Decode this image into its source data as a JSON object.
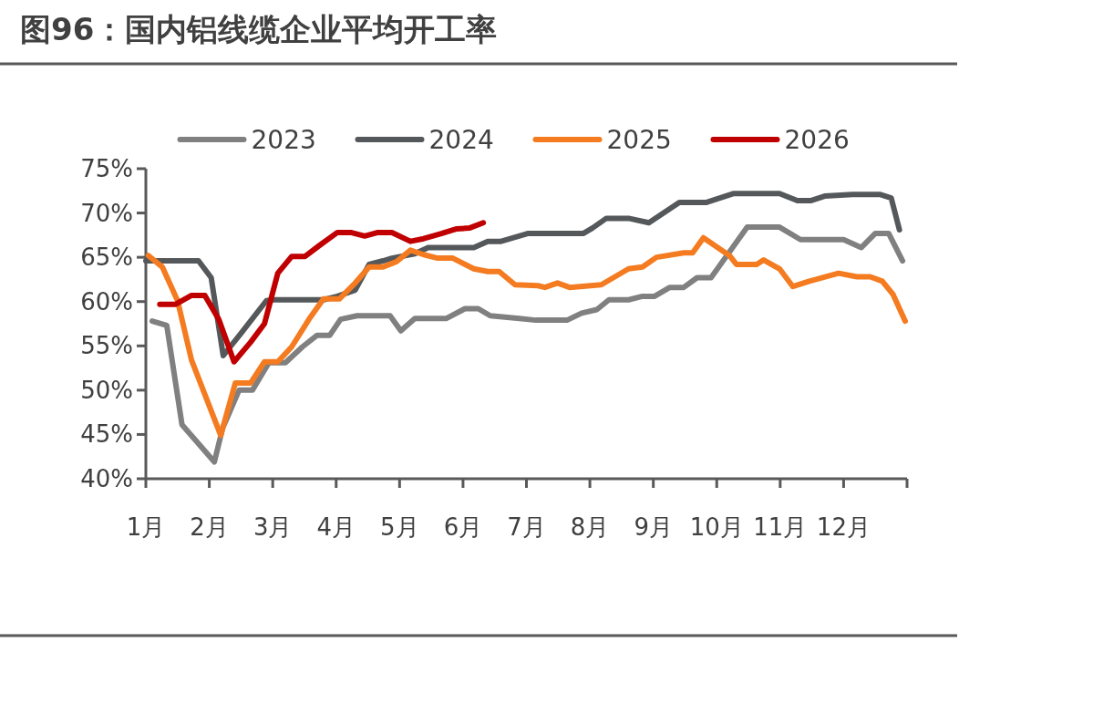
{
  "chart_data": {
    "type": "line",
    "title": "图96：国内铝线缆企业平均开工率",
    "legend": "top",
    "xlim": [
      1,
      13
    ],
    "ylim": [
      40,
      75
    ],
    "xticks": [
      {
        "value": 1,
        "label": "1月"
      },
      {
        "value": 2,
        "label": "2月"
      },
      {
        "value": 3,
        "label": "3月"
      },
      {
        "value": 4,
        "label": "4月"
      },
      {
        "value": 5,
        "label": "5月"
      },
      {
        "value": 6,
        "label": "6月"
      },
      {
        "value": 7,
        "label": "7月"
      },
      {
        "value": 8,
        "label": "8月"
      },
      {
        "value": 9,
        "label": "9月"
      },
      {
        "value": 10,
        "label": "10月"
      },
      {
        "value": 11,
        "label": "11月"
      },
      {
        "value": 12,
        "label": "12月"
      },
      {
        "value": 13,
        "label": null
      }
    ],
    "yticks": [
      {
        "value": 40,
        "label": "40%"
      },
      {
        "value": 45,
        "label": "45%"
      },
      {
        "value": 50,
        "label": "50%"
      },
      {
        "value": 55,
        "label": "55%"
      },
      {
        "value": 60,
        "label": "60%"
      },
      {
        "value": 65,
        "label": "65%"
      },
      {
        "value": 70,
        "label": "70%"
      },
      {
        "value": 75,
        "label": "75%"
      }
    ],
    "series": [
      {
        "name": "2023",
        "color": "#808080",
        "x": [
          1.1,
          1.33,
          1.57,
          2.08,
          2.21,
          2.47,
          2.68,
          2.94,
          3.2,
          3.47,
          3.7,
          3.9,
          4.07,
          4.33,
          4.85,
          5.02,
          5.24,
          5.74,
          6.03,
          6.24,
          6.43,
          6.89,
          7.15,
          7.64,
          7.87,
          8.11,
          8.3,
          8.61,
          8.83,
          9.02,
          9.26,
          9.48,
          9.69,
          9.91,
          10.48,
          10.99,
          11.32,
          12.0,
          12.28,
          12.5,
          12.71,
          12.93
        ],
        "values": [
          57.8,
          57.3,
          46.1,
          41.9,
          45.7,
          50.0,
          50.0,
          53.1,
          53.1,
          54.9,
          56.2,
          56.2,
          58.0,
          58.4,
          58.4,
          56.7,
          58.1,
          58.1,
          59.2,
          59.2,
          58.4,
          58.1,
          57.9,
          57.9,
          58.7,
          59.1,
          60.2,
          60.2,
          60.6,
          60.6,
          61.6,
          61.6,
          62.7,
          62.7,
          68.4,
          68.4,
          67.0,
          67.0,
          66.1,
          67.7,
          67.7,
          64.6
        ]
      },
      {
        "name": "2024",
        "color": "#54585a",
        "x": [
          1.0,
          1.83,
          2.03,
          2.22,
          2.51,
          2.9,
          3.01,
          3.8,
          4.02,
          4.3,
          4.52,
          4.74,
          4.88,
          5.24,
          5.45,
          6.17,
          6.39,
          6.6,
          7.03,
          7.9,
          8.04,
          8.26,
          8.61,
          8.93,
          9.41,
          9.84,
          10.27,
          10.99,
          11.27,
          11.49,
          11.7,
          12.14,
          12.57,
          12.75,
          12.88
        ],
        "values": [
          64.6,
          64.6,
          62.7,
          53.9,
          56.5,
          60.1,
          60.2,
          60.2,
          60.6,
          61.3,
          64.2,
          64.6,
          64.9,
          65.4,
          66.1,
          66.1,
          66.8,
          66.8,
          67.7,
          67.7,
          68.3,
          69.4,
          69.4,
          68.9,
          71.2,
          71.2,
          72.2,
          72.2,
          71.4,
          71.4,
          71.9,
          72.1,
          72.1,
          71.7,
          68.1
        ]
      },
      {
        "name": "2025",
        "color": "#f47b20",
        "x": [
          1.04,
          1.26,
          1.5,
          1.72,
          2.18,
          2.41,
          2.65,
          2.87,
          3.08,
          3.3,
          3.59,
          3.8,
          4.05,
          4.3,
          4.52,
          4.74,
          4.95,
          5.17,
          5.38,
          5.6,
          5.84,
          6.17,
          6.39,
          6.57,
          6.82,
          7.18,
          7.29,
          7.49,
          7.68,
          8.18,
          8.61,
          8.83,
          9.05,
          9.48,
          9.62,
          9.79,
          10.2,
          10.31,
          10.63,
          10.74,
          10.99,
          11.2,
          11.46,
          11.92,
          12.21,
          12.42,
          12.61,
          12.78,
          12.97
        ],
        "values": [
          65.2,
          63.9,
          60.1,
          53.4,
          44.9,
          50.8,
          50.8,
          53.2,
          53.2,
          54.9,
          58.2,
          60.3,
          60.3,
          62.1,
          63.9,
          63.9,
          64.5,
          65.8,
          65.3,
          64.9,
          64.9,
          63.7,
          63.4,
          63.4,
          61.9,
          61.8,
          61.6,
          62.1,
          61.6,
          61.9,
          63.7,
          63.9,
          65.0,
          65.5,
          65.5,
          67.2,
          65.2,
          64.2,
          64.2,
          64.7,
          63.7,
          61.7,
          62.3,
          63.2,
          62.8,
          62.8,
          62.3,
          60.8,
          57.8
        ]
      },
      {
        "name": "2026",
        "color": "#c00000",
        "x": [
          1.22,
          1.47,
          1.72,
          1.93,
          2.15,
          2.39,
          2.65,
          2.87,
          3.08,
          3.3,
          3.51,
          3.73,
          4.02,
          4.23,
          4.45,
          4.66,
          4.88,
          5.17,
          5.38,
          5.67,
          5.89,
          6.1,
          6.32
        ],
        "values": [
          59.7,
          59.7,
          60.7,
          60.7,
          58.0,
          53.2,
          55.4,
          57.5,
          63.2,
          65.1,
          65.1,
          66.3,
          67.8,
          67.8,
          67.4,
          67.8,
          67.8,
          66.8,
          67.1,
          67.7,
          68.2,
          68.3,
          68.9
        ]
      }
    ]
  }
}
